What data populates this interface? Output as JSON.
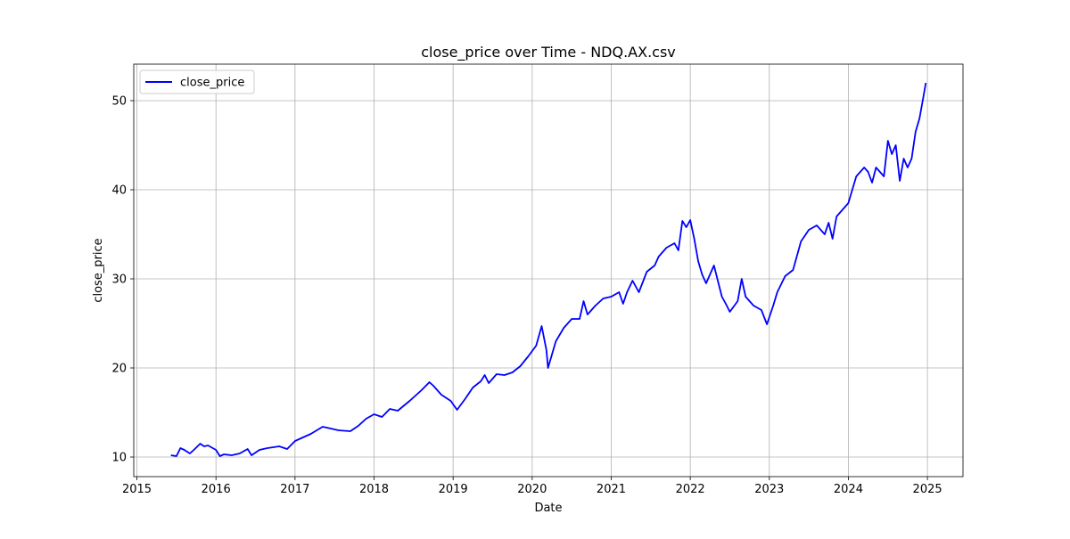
{
  "chart_data": {
    "type": "line",
    "title": "close_price over Time - NDQ.AX.csv",
    "xlabel": "Date",
    "ylabel": "close_price",
    "xlim": [
      2014.96,
      2025.45
    ],
    "ylim": [
      7.8,
      54.1
    ],
    "x_ticks": [
      2015,
      2016,
      2017,
      2018,
      2019,
      2020,
      2021,
      2022,
      2023,
      2024,
      2025
    ],
    "x_tick_labels": [
      "2015",
      "2016",
      "2017",
      "2018",
      "2019",
      "2020",
      "2021",
      "2022",
      "2023",
      "2024",
      "2025"
    ],
    "y_ticks": [
      10,
      20,
      30,
      40,
      50
    ],
    "y_tick_labels": [
      "10",
      "20",
      "30",
      "40",
      "50"
    ],
    "grid": true,
    "legend": {
      "position": "top-left",
      "entries": [
        "close_price"
      ]
    },
    "series": [
      {
        "name": "close_price",
        "color": "#0000ff",
        "x": [
          2015.43,
          2015.5,
          2015.55,
          2015.6,
          2015.67,
          2015.72,
          2015.8,
          2015.85,
          2015.9,
          2016.0,
          2016.05,
          2016.1,
          2016.2,
          2016.3,
          2016.4,
          2016.45,
          2016.55,
          2016.65,
          2016.8,
          2016.9,
          2017.0,
          2017.1,
          2017.2,
          2017.35,
          2017.45,
          2017.55,
          2017.7,
          2017.8,
          2017.9,
          2018.0,
          2018.1,
          2018.2,
          2018.3,
          2018.45,
          2018.6,
          2018.7,
          2018.75,
          2018.85,
          2018.97,
          2019.05,
          2019.15,
          2019.25,
          2019.35,
          2019.4,
          2019.45,
          2019.55,
          2019.65,
          2019.75,
          2019.85,
          2019.95,
          2020.05,
          2020.12,
          2020.18,
          2020.2,
          2020.25,
          2020.3,
          2020.4,
          2020.5,
          2020.6,
          2020.65,
          2020.7,
          2020.8,
          2020.9,
          2021.0,
          2021.1,
          2021.15,
          2021.2,
          2021.27,
          2021.35,
          2021.45,
          2021.55,
          2021.6,
          2021.7,
          2021.8,
          2021.85,
          2021.9,
          2021.95,
          2022.0,
          2022.05,
          2022.1,
          2022.15,
          2022.2,
          2022.3,
          2022.4,
          2022.45,
          2022.5,
          2022.6,
          2022.65,
          2022.7,
          2022.75,
          2022.8,
          2022.9,
          2022.97,
          2023.05,
          2023.1,
          2023.2,
          2023.3,
          2023.4,
          2023.5,
          2023.6,
          2023.7,
          2023.75,
          2023.8,
          2023.85,
          2023.9,
          2024.0,
          2024.1,
          2024.2,
          2024.25,
          2024.3,
          2024.35,
          2024.45,
          2024.5,
          2024.55,
          2024.6,
          2024.65,
          2024.7,
          2024.75,
          2024.8,
          2024.85,
          2024.9,
          2024.95,
          2024.98
        ],
        "y": [
          10.2,
          10.1,
          11.0,
          10.8,
          10.4,
          10.8,
          11.5,
          11.2,
          11.3,
          10.8,
          10.1,
          10.3,
          10.2,
          10.4,
          10.9,
          10.2,
          10.8,
          11.0,
          11.2,
          10.9,
          11.8,
          12.2,
          12.6,
          13.4,
          13.2,
          13.0,
          12.9,
          13.5,
          14.3,
          14.8,
          14.5,
          15.4,
          15.2,
          16.3,
          17.5,
          18.4,
          18.0,
          17.0,
          16.3,
          15.3,
          16.5,
          17.8,
          18.5,
          19.2,
          18.3,
          19.3,
          19.2,
          19.5,
          20.2,
          21.3,
          22.5,
          24.7,
          22.0,
          20.0,
          21.5,
          23.0,
          24.5,
          25.5,
          25.5,
          27.5,
          26.0,
          27.0,
          27.8,
          28.0,
          28.5,
          27.2,
          28.5,
          29.8,
          28.5,
          30.8,
          31.5,
          32.5,
          33.5,
          34.0,
          33.2,
          36.5,
          35.8,
          36.6,
          34.5,
          32.0,
          30.5,
          29.5,
          31.5,
          28.0,
          27.2,
          26.3,
          27.5,
          30.0,
          28.0,
          27.5,
          27.0,
          26.5,
          24.9,
          27.0,
          28.5,
          30.3,
          31.0,
          34.2,
          35.5,
          36.0,
          35.0,
          36.3,
          34.5,
          37.0,
          37.5,
          38.5,
          41.5,
          42.5,
          42.0,
          40.8,
          42.5,
          41.5,
          45.5,
          44.0,
          45.0,
          41.0,
          43.5,
          42.5,
          43.5,
          46.5,
          48.0,
          50.5,
          52.0
        ]
      }
    ]
  }
}
